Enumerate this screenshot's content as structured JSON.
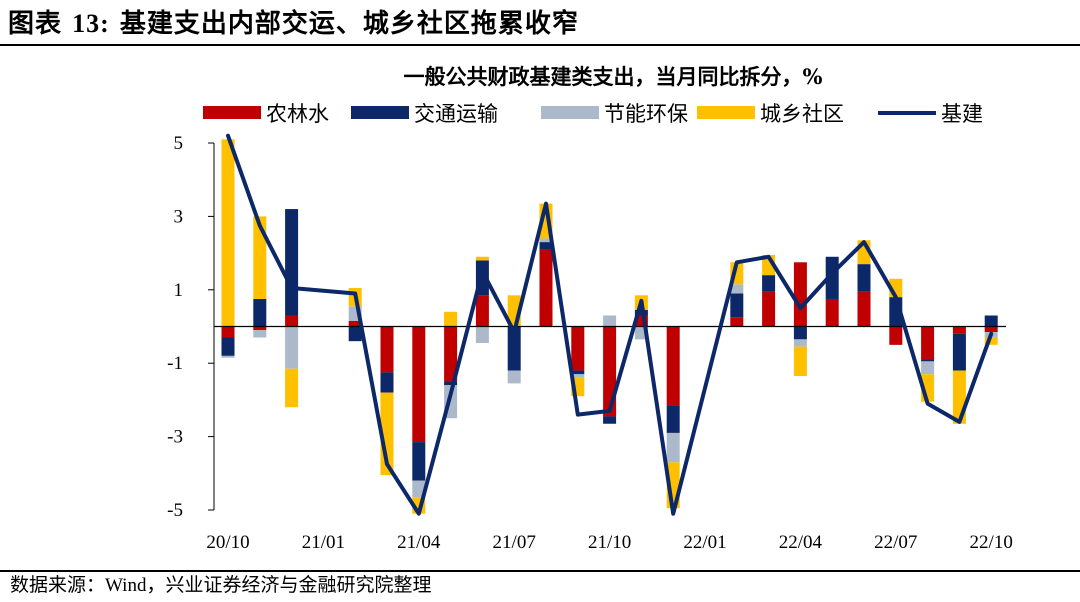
{
  "figure": {
    "label": "图表",
    "number": "13:",
    "title": "基建支出内部交运、城乡社区拖累收窄"
  },
  "source": "数据来源：Wind，兴业证券经济与金融研究院整理",
  "chart_data": {
    "type": "bar",
    "title": "一般公共财政基建类支出，当月同比拆分，%",
    "xlabel": "",
    "ylabel": "",
    "ylim": [
      -5,
      5
    ],
    "yticks": [
      5,
      3,
      1,
      -1,
      -3,
      -5
    ],
    "ytick_labels": [
      "5",
      "3",
      "1",
      "-1",
      "-3",
      "-5"
    ],
    "grid": false,
    "legend_position": "top",
    "x_tick_labels": [
      {
        "index": 0,
        "label": "20/10"
      },
      {
        "index": 3,
        "label": "21/01"
      },
      {
        "index": 6,
        "label": "21/04"
      },
      {
        "index": 9,
        "label": "21/07"
      },
      {
        "index": 12,
        "label": "21/10"
      },
      {
        "index": 15,
        "label": "22/01"
      },
      {
        "index": 18,
        "label": "22/04"
      },
      {
        "index": 21,
        "label": "22/07"
      },
      {
        "index": 24,
        "label": "22/10"
      }
    ],
    "categories": [
      "20/10",
      "20/11",
      "20/12",
      "21/01",
      "21/02",
      "21/03",
      "21/04",
      "21/05",
      "21/06",
      "21/07",
      "21/08",
      "21/09",
      "21/10",
      "21/11",
      "21/12",
      "22/01",
      "22/02",
      "22/03",
      "22/04",
      "22/05",
      "22/06",
      "22/07",
      "22/08",
      "22/09",
      "22/10"
    ],
    "series": [
      {
        "name": "农林水",
        "kind": "bar",
        "color": "#C00000",
        "values": [
          -0.3,
          -0.1,
          0.3,
          null,
          0.15,
          -1.25,
          -3.15,
          -1.5,
          0.85,
          0.0,
          2.1,
          -1.2,
          -2.45,
          0.3,
          -2.15,
          null,
          0.25,
          0.95,
          1.75,
          0.75,
          0.95,
          -0.5,
          -0.9,
          -0.2,
          -0.15
        ]
      },
      {
        "name": "交通运输",
        "kind": "bar",
        "color": "#0D2869",
        "values": [
          -0.5,
          0.75,
          2.9,
          null,
          -0.4,
          -0.55,
          -1.05,
          -0.1,
          0.95,
          -1.2,
          0.2,
          -0.1,
          -0.2,
          0.15,
          -0.75,
          null,
          0.65,
          0.45,
          -0.35,
          1.15,
          0.75,
          0.8,
          -0.05,
          -1.0,
          0.3
        ]
      },
      {
        "name": "节能环保",
        "kind": "bar",
        "color": "#ACB9CA",
        "values": [
          -0.05,
          -0.2,
          -1.15,
          null,
          0.4,
          null,
          -0.45,
          -0.9,
          -0.45,
          -0.35,
          0.1,
          -0.1,
          0.3,
          -0.35,
          -0.8,
          null,
          0.25,
          null,
          -0.2,
          null,
          null,
          null,
          -0.35,
          null,
          -0.15
        ]
      },
      {
        "name": "城乡社区",
        "kind": "bar",
        "color": "#FFC000",
        "values": [
          5.1,
          2.25,
          -1.05,
          null,
          0.5,
          -2.25,
          -0.45,
          0.4,
          0.1,
          0.85,
          0.95,
          -0.5,
          null,
          0.4,
          -1.25,
          null,
          0.6,
          0.55,
          -0.8,
          null,
          0.65,
          0.5,
          -0.75,
          -1.45,
          -0.2
        ]
      },
      {
        "name": "基建",
        "kind": "line",
        "color": "#0D2869",
        "values": [
          5.2,
          2.75,
          1.05,
          null,
          0.9,
          -3.75,
          -5.1,
          -1.85,
          1.5,
          -0.15,
          3.35,
          -2.4,
          -2.3,
          0.7,
          -5.1,
          null,
          1.75,
          1.9,
          0.5,
          1.45,
          2.3,
          0.8,
          -2.1,
          -2.6,
          -0.2
        ]
      }
    ]
  }
}
